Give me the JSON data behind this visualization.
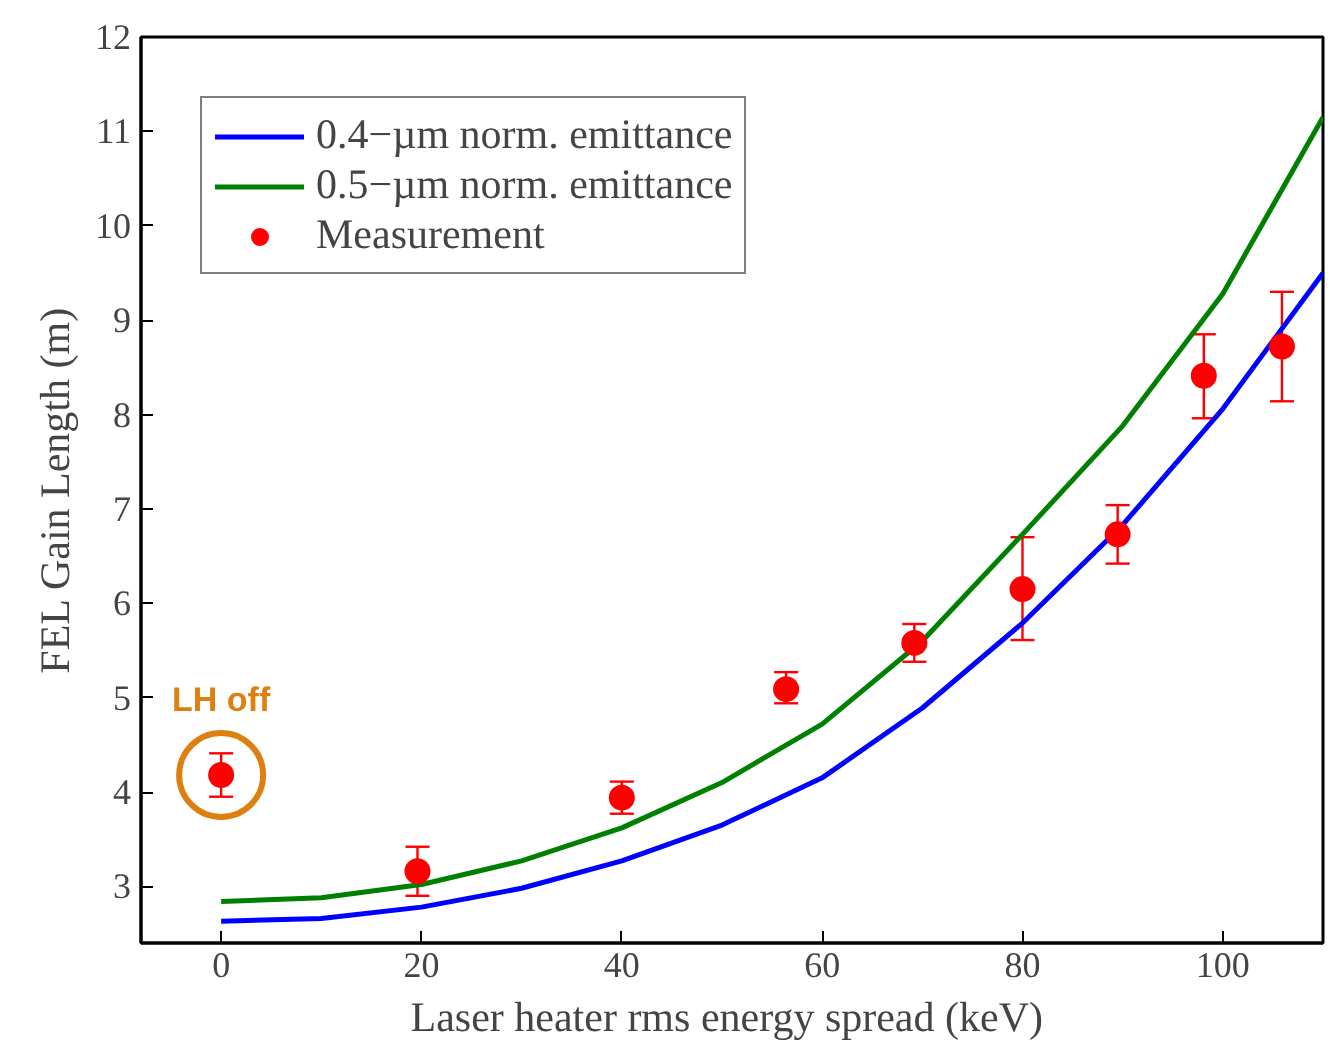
{
  "chart_data": {
    "type": "line",
    "xlabel": "Laser heater  rms energy spread (keV)",
    "ylabel": "FEL Gain Length (m)",
    "xlim": [
      -8,
      110
    ],
    "ylim": [
      2.4,
      12
    ],
    "xticks": [
      0,
      20,
      40,
      60,
      80,
      100
    ],
    "yticks": [
      3,
      4,
      5,
      6,
      7,
      8,
      9,
      10,
      11,
      12
    ],
    "grid": false,
    "legend": "top left",
    "series": [
      {
        "name": "0.4−µm norm. emittance",
        "color": "#0000ff",
        "line_style": "solid",
        "x": [
          0,
          10,
          20,
          30,
          40,
          50,
          60,
          70,
          80,
          90,
          100,
          110
        ],
        "values": [
          2.63,
          2.66,
          2.78,
          2.98,
          3.27,
          3.65,
          4.15,
          4.89,
          5.79,
          6.83,
          8.06,
          9.5
        ]
      },
      {
        "name": "0.5−µm norm. emittance",
        "color": "#008000",
        "line_style": "solid",
        "x": [
          0,
          10,
          20,
          30,
          40,
          50,
          60,
          70,
          80,
          90,
          100,
          110
        ],
        "values": [
          2.84,
          2.88,
          3.02,
          3.27,
          3.62,
          4.1,
          4.72,
          5.6,
          6.73,
          7.88,
          9.28,
          11.15
        ]
      },
      {
        "name": "Measurement",
        "type": "scatter",
        "color": "#ff0000",
        "marker": "circle",
        "x": [
          0,
          19.6,
          40,
          56.4,
          69.2,
          80,
          89.5,
          98.1,
          105.9
        ],
        "values": [
          4.18,
          3.16,
          3.94,
          5.09,
          5.58,
          6.15,
          6.73,
          8.41,
          8.72
        ],
        "errors": [
          [
            3.95,
            4.41
          ],
          [
            2.9,
            3.42
          ],
          [
            3.77,
            4.11
          ],
          [
            4.94,
            5.27
          ],
          [
            5.38,
            5.78
          ],
          [
            5.61,
            6.7
          ],
          [
            6.42,
            7.04
          ],
          [
            7.96,
            8.85
          ],
          [
            8.14,
            9.3
          ]
        ]
      }
    ],
    "annotations": [
      "LH off"
    ]
  }
}
